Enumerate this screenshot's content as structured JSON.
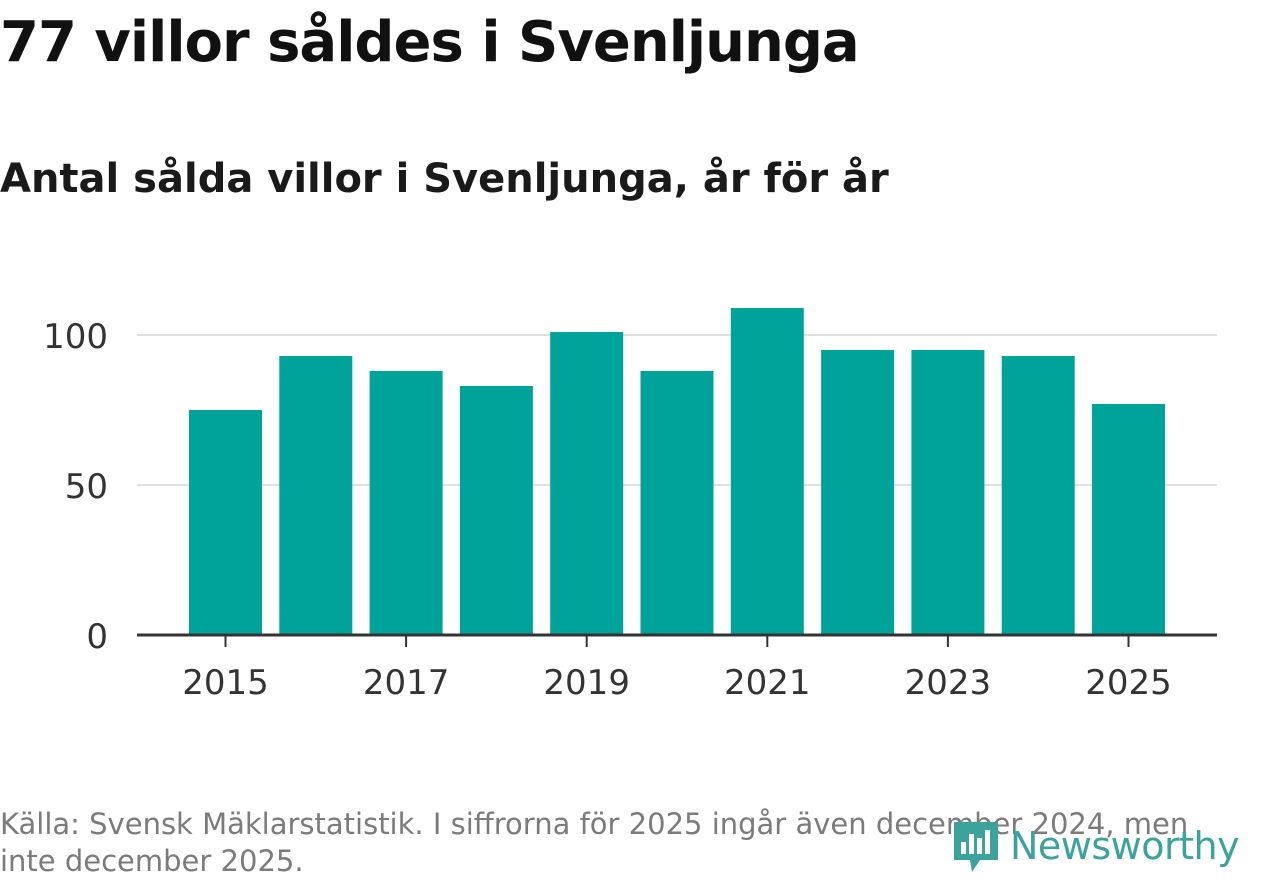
{
  "title": "77 villor såldes i Svenljunga",
  "subtitle": "Antal sålda villor i Svenljunga, år för år",
  "source": "Källa: Svensk Mäklarstatistik. I siffrorna för 2025 ingår även december 2024, men inte december 2025.",
  "logo": {
    "text": "Newsworthy",
    "icon": "newsworthy-bar-chart-icon",
    "color": "#3ba39b"
  },
  "colors": {
    "bar": "#00a39a",
    "grid": "#e0e0e0",
    "axis": "#333333",
    "text": "#333333"
  },
  "chart_data": {
    "type": "bar",
    "categories": [
      "2015",
      "2016",
      "2017",
      "2018",
      "2019",
      "2020",
      "2021",
      "2022",
      "2023",
      "2024",
      "2025"
    ],
    "values": [
      75,
      93,
      88,
      83,
      101,
      88,
      109,
      95,
      95,
      93,
      77
    ],
    "xticks": [
      "2015",
      "2017",
      "2019",
      "2021",
      "2023",
      "2025"
    ],
    "yticks": [
      0,
      50,
      100
    ],
    "ylim": [
      0,
      120
    ],
    "grid": true,
    "legend": "none"
  }
}
